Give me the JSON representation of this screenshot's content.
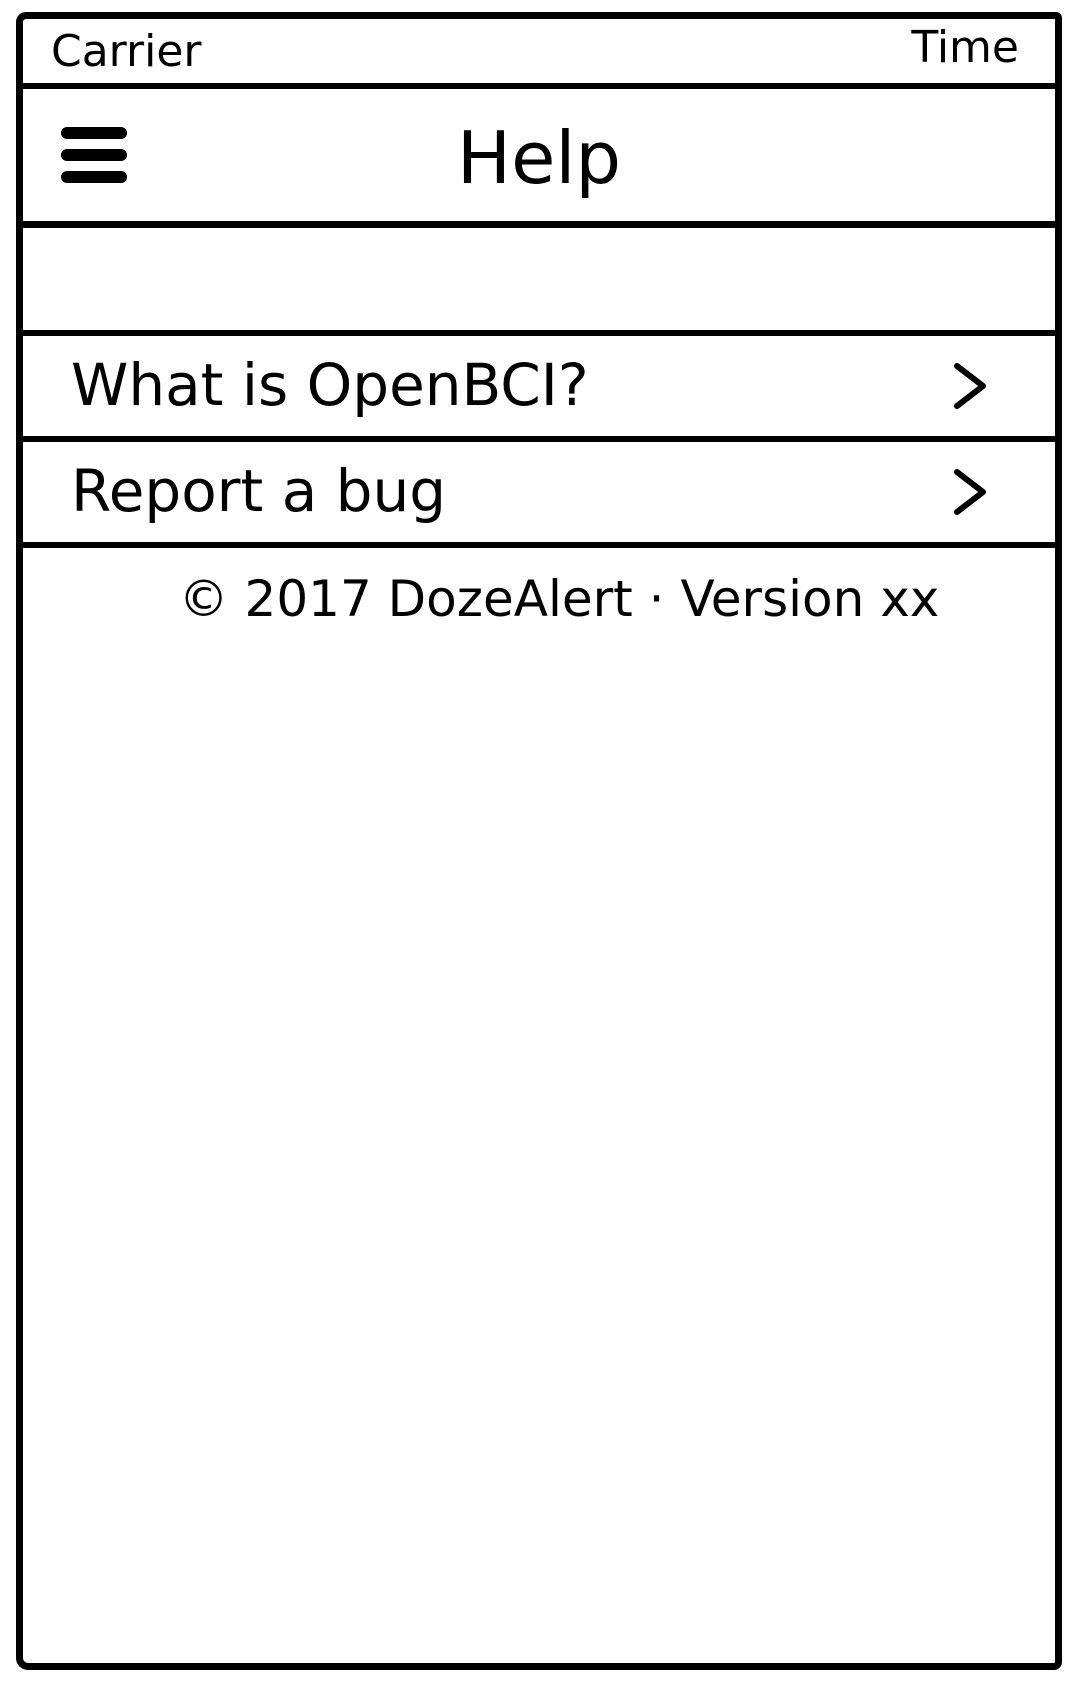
{
  "status_bar": {
    "carrier": "Carrier",
    "time": "Time"
  },
  "nav_bar": {
    "title": "Help",
    "menu_icon": "hamburger-menu-icon"
  },
  "help_list": {
    "items": [
      {
        "label": "What is OpenBCI?",
        "icon": "chevron-right-icon"
      },
      {
        "label": "Report a bug",
        "icon": "chevron-right-icon"
      }
    ]
  },
  "footer": {
    "text": "© 2017 DozeAlert · Version xx"
  }
}
